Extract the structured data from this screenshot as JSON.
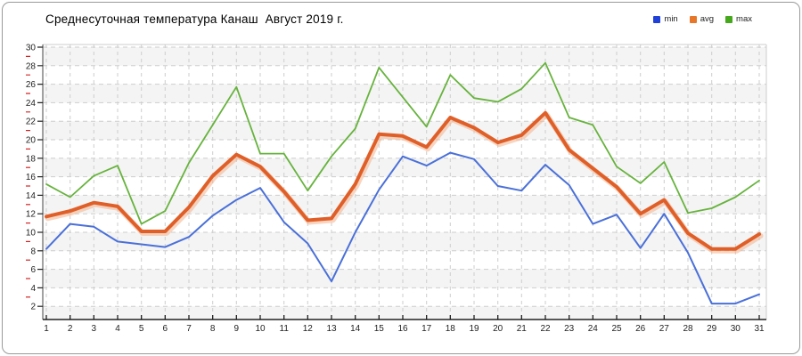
{
  "header": {
    "title": "Среднесуточная температура Канаш  Август 2019 г."
  },
  "legend": {
    "items": [
      {
        "id": "min",
        "label": "min",
        "color": "#2040d8"
      },
      {
        "id": "avg",
        "label": "avg",
        "color": "#e87628"
      },
      {
        "id": "max",
        "label": "max",
        "color": "#46a81c"
      }
    ]
  },
  "chart_data": {
    "type": "line",
    "title": "Среднесуточная температура Канаш  Август 2019 г.",
    "xlabel": "",
    "ylabel": "",
    "x": [
      1,
      2,
      3,
      4,
      5,
      6,
      7,
      8,
      9,
      10,
      11,
      12,
      13,
      14,
      15,
      16,
      17,
      18,
      19,
      20,
      21,
      22,
      23,
      24,
      25,
      26,
      27,
      28,
      29,
      30,
      31
    ],
    "y_ticks": [
      2,
      4,
      6,
      8,
      10,
      12,
      14,
      16,
      18,
      20,
      22,
      24,
      26,
      28,
      30
    ],
    "ylim": [
      1,
      30
    ],
    "grid": "dashed",
    "legend_position": "top-right",
    "series": [
      {
        "name": "min",
        "color": "#4a70d9",
        "width": 2,
        "values": [
          8.2,
          10.9,
          10.6,
          9.0,
          8.7,
          8.4,
          9.5,
          11.8,
          13.5,
          14.8,
          11.1,
          8.8,
          4.7,
          10.0,
          14.6,
          18.2,
          17.2,
          18.6,
          17.9,
          15.0,
          14.5,
          17.3,
          15.1,
          10.9,
          11.9,
          8.3,
          12.0,
          7.8,
          2.3,
          2.3,
          3.3
        ]
      },
      {
        "name": "avg",
        "color": "#e05f28",
        "width": 4,
        "values": [
          11.7,
          12.3,
          13.2,
          12.8,
          10.1,
          10.1,
          12.7,
          16.1,
          18.4,
          17.1,
          14.4,
          11.3,
          11.5,
          15.2,
          20.6,
          20.4,
          19.2,
          22.4,
          21.3,
          19.7,
          20.5,
          22.9,
          18.9,
          16.9,
          14.9,
          12.0,
          13.5,
          9.9,
          8.2,
          8.2,
          9.8
        ]
      },
      {
        "name": "max",
        "color": "#67b33d",
        "width": 1.8,
        "values": [
          15.2,
          13.8,
          16.1,
          17.2,
          10.9,
          12.3,
          17.5,
          21.6,
          25.7,
          18.5,
          18.5,
          14.5,
          18.2,
          21.2,
          27.8,
          24.6,
          21.4,
          27.0,
          24.5,
          24.1,
          25.5,
          28.3,
          22.4,
          21.6,
          17.1,
          15.3,
          17.6,
          12.1,
          12.6,
          13.8,
          15.6
        ]
      }
    ],
    "style": {
      "band_colors": [
        "#f4f4f4",
        "#ffffff"
      ],
      "gridline_color": "#cdcdcd",
      "axis_color": "#222222",
      "minor_tick_color": "#d42222",
      "halo_color": "#f2b38c"
    }
  }
}
